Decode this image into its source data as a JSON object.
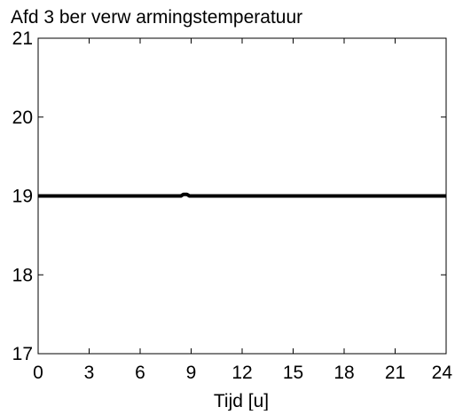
{
  "chart_data": {
    "type": "line",
    "title": "Afd 3 ber verw armingstemperatuur",
    "xlabel": "Tijd [u]",
    "ylabel": "",
    "xlim": [
      0,
      24
    ],
    "ylim": [
      17,
      21
    ],
    "xticks": [
      0,
      3,
      6,
      9,
      12,
      15,
      18,
      21,
      24
    ],
    "yticks": [
      17,
      18,
      19,
      20,
      21
    ],
    "grid": false,
    "series": [
      {
        "color": "#000000",
        "x": [
          0,
          8.2,
          8.4,
          8.55,
          8.75,
          8.9,
          9.1,
          24
        ],
        "y": [
          19,
          19,
          19.0,
          19.02,
          19.02,
          19.0,
          19,
          19
        ]
      }
    ]
  }
}
